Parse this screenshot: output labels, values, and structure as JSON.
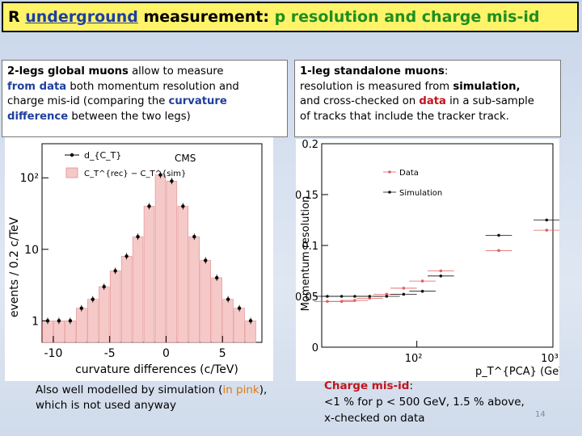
{
  "header": {
    "t1": "R ",
    "t2": "underground",
    "t3": " measurement: ",
    "t4": "p resolution and charge mis-id"
  },
  "left_box": {
    "l1a": "2-legs global muons",
    "l1b": " allow to measure",
    "l2a": "from data",
    "l2b": " both momentum resolution and",
    "l3a": "charge mis-id (comparing the ",
    "l3b": "curvature",
    "l4a": "difference",
    "l4b": " between the two legs)"
  },
  "right_box": {
    "l1a": "1-leg standalone muons",
    "l1b": ":",
    "l2a": "resolution is measured from ",
    "l2b": "simulation,",
    "l3a": "and cross-checked on ",
    "l3b": "data",
    "l3c": " in a sub-sample",
    "l4": "of tracks that include the tracker track."
  },
  "left_note": {
    "l1a": "Also well modelled by simulation (",
    "l1b": "in pink",
    "l1c": "),",
    "l2": "which is not used anyway"
  },
  "right_note": {
    "l1a": "Charge mis-id",
    "l1b": ":",
    "l2": "<1 % for p < 500 GeV, 1.5 % above,",
    "l3": "x-checked on data"
  },
  "slide_number": "14",
  "colors": {
    "title_bg": "#fff36a",
    "accent_blue": "#1f3f9f",
    "accent_green": "#1e8f1e",
    "accent_red": "#c0141e",
    "accent_orange": "#e07a10",
    "data_marker": "#e06060",
    "sim_marker": "#111111"
  },
  "chart_data": [
    {
      "type": "bar",
      "xlabel": "curvature differences (c/TeV)",
      "ylabel": "events / 0.2 c/TeV",
      "xlim": [
        -11,
        8.5
      ],
      "ylim_log": [
        0.5,
        300
      ],
      "yscale": "log",
      "x_ticks": [
        -10,
        -5,
        0,
        5
      ],
      "x_tick_labels": [
        "-10",
        "-5",
        "0",
        "5"
      ],
      "y_ticks": [
        1,
        10,
        100
      ],
      "y_tick_labels": [
        "1",
        "10",
        "10²"
      ],
      "label": "CMS",
      "legend": [
        "d_{C_T}",
        "C_T^{rec} − C_T^{sim}"
      ],
      "legend_position": "top-left",
      "series": [
        {
          "x": [
            -10.5,
            -9.5,
            -8.5,
            -7.5,
            -6.5,
            -5.5,
            -4.5,
            -3.5,
            -2.5,
            -1.5,
            -0.5,
            0.5,
            1.5,
            2.5,
            3.5,
            4.5,
            5.5,
            6.5,
            7.5
          ],
          "values": [
            1,
            1,
            1,
            1.5,
            2,
            3,
            5,
            8,
            15,
            40,
            110,
            90,
            40,
            15,
            7,
            4,
            2,
            1.5,
            1
          ]
        }
      ]
    },
    {
      "type": "scatter",
      "xlabel": "p_T^{PCA} (GeV/c)",
      "ylabel": "Momentum resolution",
      "xscale": "log",
      "xlim": [
        20,
        1000
      ],
      "ylim": [
        0,
        0.2
      ],
      "y_ticks": [
        0,
        0.05,
        0.1,
        0.15,
        0.2
      ],
      "y_tick_labels": [
        "0",
        "0.05",
        "0.1",
        "0.15",
        "0.2"
      ],
      "x_tick_labels": [
        "10²",
        "10³"
      ],
      "legend_position": "top-left",
      "series": [
        {
          "name": "Data",
          "color": "#e06060",
          "x": [
            22,
            28,
            35,
            45,
            60,
            80,
            110,
            150,
            400,
            900
          ],
          "values": [
            0.045,
            0.045,
            0.046,
            0.048,
            0.052,
            0.058,
            0.065,
            0.075,
            0.095,
            0.115
          ]
        },
        {
          "name": "Simulation",
          "color": "#111111",
          "x": [
            22,
            28,
            35,
            45,
            60,
            80,
            110,
            150,
            400,
            900
          ],
          "values": [
            0.05,
            0.05,
            0.05,
            0.05,
            0.05,
            0.052,
            0.055,
            0.07,
            0.11,
            0.125
          ]
        }
      ]
    }
  ]
}
